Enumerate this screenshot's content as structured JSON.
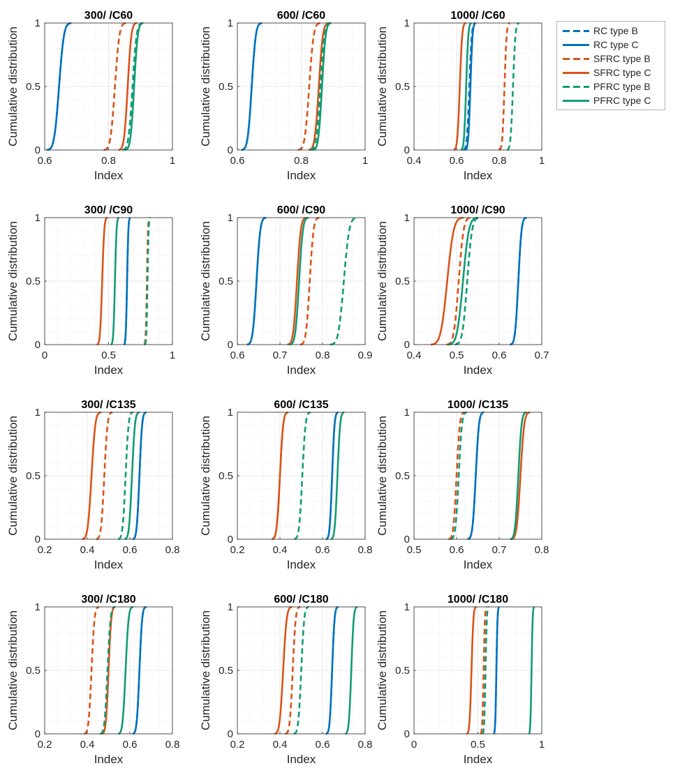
{
  "figure": {
    "colors": {
      "RC": "#0072BD",
      "SFRC": "#D95319",
      "PFRC": "#119B74",
      "axis": "#262626",
      "grid": "#d9d9d9"
    }
  },
  "legend": {
    "entries": [
      {
        "label": "RC type B",
        "color": "#0072BD",
        "style": "dashed"
      },
      {
        "label": "RC type C",
        "color": "#0072BD",
        "style": "solid"
      },
      {
        "label": "SFRC type B",
        "color": "#D95319",
        "style": "dashed"
      },
      {
        "label": "SFRC type C",
        "color": "#D95319",
        "style": "solid"
      },
      {
        "label": "PFRC type B",
        "color": "#119B74",
        "style": "dashed"
      },
      {
        "label": "PFRC type C",
        "color": "#119B74",
        "style": "solid"
      }
    ]
  },
  "chart_data": [
    {
      "type": "line",
      "title": "300/ /C60",
      "xlabel": "Index",
      "ylabel": "Cumulative distribution",
      "xlim": [
        0.6,
        1
      ],
      "xticks": [
        0.6,
        0.8,
        1
      ],
      "xticklabels": [
        "0.6",
        "0.8",
        "1"
      ],
      "ylim": [
        0,
        1
      ],
      "yticks": [
        0,
        0.5,
        1
      ],
      "yticklabels": [
        "0",
        "0.5",
        "1"
      ],
      "grid": "minor-dotted",
      "series": [
        {
          "name": "RC type B",
          "median": 0.645,
          "spread": 0.012
        },
        {
          "name": "RC type C",
          "median": 0.645,
          "spread": 0.012
        },
        {
          "name": "SFRC type B",
          "median": 0.82,
          "spread": 0.011
        },
        {
          "name": "SFRC type C",
          "median": 0.86,
          "spread": 0.009
        },
        {
          "name": "PFRC type B",
          "median": 0.875,
          "spread": 0.01
        },
        {
          "name": "PFRC type C",
          "median": 0.88,
          "spread": 0.009
        }
      ]
    },
    {
      "type": "line",
      "title": "600/ /C60",
      "xlabel": "Index",
      "ylabel": "Cumulative distribution",
      "xlim": [
        0.6,
        1
      ],
      "xticks": [
        0.6,
        0.8,
        1
      ],
      "xticklabels": [
        "0.6",
        "0.8",
        "1"
      ],
      "ylim": [
        0,
        1
      ],
      "yticks": [
        0,
        0.5,
        1
      ],
      "yticklabels": [
        "0",
        "0.5",
        "1"
      ],
      "grid": "minor-dotted",
      "series": [
        {
          "name": "RC type B",
          "median": 0.645,
          "spread": 0.01
        },
        {
          "name": "RC type C",
          "median": 0.645,
          "spread": 0.01
        },
        {
          "name": "SFRC type B",
          "median": 0.825,
          "spread": 0.011
        },
        {
          "name": "SFRC type C",
          "median": 0.855,
          "spread": 0.01
        },
        {
          "name": "PFRC type B",
          "median": 0.86,
          "spread": 0.01
        },
        {
          "name": "PFRC type C",
          "median": 0.865,
          "spread": 0.009
        }
      ]
    },
    {
      "type": "line",
      "title": "1000/ /C60",
      "xlabel": "Index",
      "ylabel": "Cumulative distribution",
      "xlim": [
        0.4,
        1
      ],
      "xticks": [
        0.4,
        0.6,
        0.8,
        1
      ],
      "xticklabels": [
        "0.4",
        "0.6",
        "0.8",
        "1"
      ],
      "ylim": [
        0,
        1
      ],
      "yticks": [
        0,
        0.5,
        1
      ],
      "yticklabels": [
        "0",
        "0.5",
        "1"
      ],
      "grid": "minor-dotted",
      "series": [
        {
          "name": "RC type B",
          "median": 0.66,
          "spread": 0.009
        },
        {
          "name": "RC type C",
          "median": 0.665,
          "spread": 0.008
        },
        {
          "name": "SFRC type B",
          "median": 0.825,
          "spread": 0.008
        },
        {
          "name": "SFRC type C",
          "median": 0.615,
          "spread": 0.009
        },
        {
          "name": "PFRC type B",
          "median": 0.865,
          "spread": 0.009
        },
        {
          "name": "PFRC type C",
          "median": 0.645,
          "spread": 0.008
        }
      ]
    },
    {
      "type": "line",
      "title": "300/ /C90",
      "xlabel": "Index",
      "ylabel": "Cumulative distribution",
      "xlim": [
        0,
        1
      ],
      "xticks": [
        0,
        0.5,
        1
      ],
      "xticklabels": [
        "0",
        "0.5",
        "1"
      ],
      "ylim": [
        0,
        1
      ],
      "yticks": [
        0,
        0.5,
        1
      ],
      "yticklabels": [
        "0",
        "0.5",
        "1"
      ],
      "grid": "minor-dotted",
      "series": [
        {
          "name": "RC type B",
          "median": 0.645,
          "spread": 0.008
        },
        {
          "name": "RC type C",
          "median": 0.645,
          "spread": 0.008
        },
        {
          "name": "SFRC type B",
          "median": 0.8,
          "spread": 0.007
        },
        {
          "name": "SFRC type C",
          "median": 0.45,
          "spread": 0.013
        },
        {
          "name": "PFRC type B",
          "median": 0.805,
          "spread": 0.007
        },
        {
          "name": "PFRC type C",
          "median": 0.55,
          "spread": 0.01
        }
      ]
    },
    {
      "type": "line",
      "title": "600/ /C90",
      "xlabel": "Index",
      "ylabel": "Cumulative distribution",
      "xlim": [
        0.6,
        0.9
      ],
      "xticks": [
        0.6,
        0.7,
        0.8,
        0.9
      ],
      "xticklabels": [
        "0.6",
        "0.7",
        "0.8",
        "0.9"
      ],
      "ylim": [
        0,
        1
      ],
      "yticks": [
        0,
        0.5,
        1
      ],
      "yticklabels": [
        "0",
        "0.5",
        "1"
      ],
      "grid": "minor-dotted",
      "series": [
        {
          "name": "RC type B",
          "median": 0.645,
          "spread": 0.007
        },
        {
          "name": "RC type C",
          "median": 0.645,
          "spread": 0.007
        },
        {
          "name": "SFRC type B",
          "median": 0.77,
          "spread": 0.007
        },
        {
          "name": "SFRC type C",
          "median": 0.74,
          "spread": 0.007
        },
        {
          "name": "PFRC type B",
          "median": 0.85,
          "spread": 0.01
        },
        {
          "name": "PFRC type C",
          "median": 0.745,
          "spread": 0.007
        }
      ]
    },
    {
      "type": "line",
      "title": "1000/ /C90",
      "xlabel": "Index",
      "ylabel": "Cumulative distribution",
      "xlim": [
        0.4,
        0.7
      ],
      "xticks": [
        0.4,
        0.5,
        0.6,
        0.7
      ],
      "xticklabels": [
        "0.4",
        "0.5",
        "0.6",
        "0.7"
      ],
      "ylim": [
        0,
        1
      ],
      "yticks": [
        0,
        0.5,
        1
      ],
      "yticklabels": [
        "0",
        "0.5",
        "1"
      ],
      "grid": "minor-dotted",
      "series": [
        {
          "name": "RC type B",
          "median": 0.645,
          "spread": 0.006
        },
        {
          "name": "RC type C",
          "median": 0.645,
          "spread": 0.006
        },
        {
          "name": "SFRC type B",
          "median": 0.505,
          "spread": 0.009
        },
        {
          "name": "SFRC type C",
          "median": 0.478,
          "spread": 0.012
        },
        {
          "name": "PFRC type B",
          "median": 0.525,
          "spread": 0.009
        },
        {
          "name": "PFRC type C",
          "median": 0.515,
          "spread": 0.011
        }
      ]
    },
    {
      "type": "line",
      "title": "300/ /C135",
      "xlabel": "Index",
      "ylabel": "Cumulative distribution",
      "xlim": [
        0.2,
        0.8
      ],
      "xticks": [
        0.2,
        0.4,
        0.6,
        0.8
      ],
      "xticklabels": [
        "0.2",
        "0.4",
        "0.6",
        "0.8"
      ],
      "ylim": [
        0,
        1
      ],
      "yticks": [
        0,
        0.5,
        1
      ],
      "yticklabels": [
        "0",
        "0.5",
        "1"
      ],
      "grid": "minor-dotted",
      "series": [
        {
          "name": "RC type B",
          "median": 0.645,
          "spread": 0.01
        },
        {
          "name": "RC type C",
          "median": 0.645,
          "spread": 0.01
        },
        {
          "name": "SFRC type B",
          "median": 0.48,
          "spread": 0.012
        },
        {
          "name": "SFRC type C",
          "median": 0.42,
          "spread": 0.014
        },
        {
          "name": "PFRC type B",
          "median": 0.58,
          "spread": 0.011
        },
        {
          "name": "PFRC type C",
          "median": 0.61,
          "spread": 0.011
        }
      ]
    },
    {
      "type": "line",
      "title": "600/ /C135",
      "xlabel": "Index",
      "ylabel": "Cumulative distribution",
      "xlim": [
        0.2,
        0.8
      ],
      "xticks": [
        0.2,
        0.4,
        0.6,
        0.8
      ],
      "xticklabels": [
        "0.2",
        "0.4",
        "0.6",
        "0.8"
      ],
      "ylim": [
        0,
        1
      ],
      "yticks": [
        0,
        0.5,
        1
      ],
      "yticklabels": [
        "0",
        "0.5",
        "1"
      ],
      "grid": "minor-dotted",
      "series": [
        {
          "name": "RC type B",
          "median": 0.645,
          "spread": 0.009
        },
        {
          "name": "RC type C",
          "median": 0.645,
          "spread": 0.009
        },
        {
          "name": "SFRC type B",
          "median": 0.4,
          "spread": 0.012
        },
        {
          "name": "SFRC type C",
          "median": 0.4,
          "spread": 0.012
        },
        {
          "name": "PFRC type B",
          "median": 0.505,
          "spread": 0.012
        },
        {
          "name": "PFRC type C",
          "median": 0.67,
          "spread": 0.01
        }
      ]
    },
    {
      "type": "line",
      "title": "1000/ /C135",
      "xlabel": "Index",
      "ylabel": "Cumulative distribution",
      "xlim": [
        0.5,
        0.8
      ],
      "xticks": [
        0.5,
        0.6,
        0.7,
        0.8
      ],
      "xticklabels": [
        "0.5",
        "0.6",
        "0.7",
        "0.8"
      ],
      "ylim": [
        0,
        1
      ],
      "yticks": [
        0,
        0.5,
        1
      ],
      "yticklabels": [
        "0",
        "0.5",
        "1"
      ],
      "grid": "minor-dotted",
      "series": [
        {
          "name": "RC type B",
          "median": 0.645,
          "spread": 0.006
        },
        {
          "name": "RC type C",
          "median": 0.645,
          "spread": 0.006
        },
        {
          "name": "SFRC type B",
          "median": 0.6,
          "spread": 0.006
        },
        {
          "name": "SFRC type C",
          "median": 0.75,
          "spread": 0.007
        },
        {
          "name": "PFRC type B",
          "median": 0.605,
          "spread": 0.006
        },
        {
          "name": "PFRC type C",
          "median": 0.745,
          "spread": 0.006
        }
      ]
    },
    {
      "type": "line",
      "title": "300/ /C180",
      "xlabel": "Index",
      "ylabel": "Cumulative distribution",
      "xlim": [
        0.2,
        0.8
      ],
      "xticks": [
        0.2,
        0.4,
        0.6,
        0.8
      ],
      "xticklabels": [
        "0.2",
        "0.4",
        "0.6",
        "0.8"
      ],
      "ylim": [
        0,
        1
      ],
      "yticks": [
        0,
        0.5,
        1
      ],
      "yticklabels": [
        "0",
        "0.5",
        "1"
      ],
      "grid": "minor-dotted",
      "series": [
        {
          "name": "RC type B",
          "median": 0.645,
          "spread": 0.01
        },
        {
          "name": "RC type C",
          "median": 0.645,
          "spread": 0.01
        },
        {
          "name": "SFRC type B",
          "median": 0.42,
          "spread": 0.011
        },
        {
          "name": "SFRC type C",
          "median": 0.5,
          "spread": 0.01
        },
        {
          "name": "PFRC type B",
          "median": 0.495,
          "spread": 0.011
        },
        {
          "name": "PFRC type C",
          "median": 0.58,
          "spread": 0.011
        }
      ]
    },
    {
      "type": "line",
      "title": "600/ /C180",
      "xlabel": "Index",
      "ylabel": "Cumulative distribution",
      "xlim": [
        0.2,
        0.8
      ],
      "xticks": [
        0.2,
        0.4,
        0.6,
        0.8
      ],
      "xticklabels": [
        "0.2",
        "0.4",
        "0.6",
        "0.8"
      ],
      "ylim": [
        0,
        1
      ],
      "yticks": [
        0,
        0.5,
        1
      ],
      "yticklabels": [
        "0",
        "0.5",
        "1"
      ],
      "grid": "minor-dotted",
      "series": [
        {
          "name": "RC type B",
          "median": 0.645,
          "spread": 0.009
        },
        {
          "name": "RC type C",
          "median": 0.645,
          "spread": 0.009
        },
        {
          "name": "SFRC type B",
          "median": 0.46,
          "spread": 0.011
        },
        {
          "name": "SFRC type C",
          "median": 0.415,
          "spread": 0.013
        },
        {
          "name": "PFRC type B",
          "median": 0.5,
          "spread": 0.011
        },
        {
          "name": "PFRC type C",
          "median": 0.735,
          "spread": 0.009
        }
      ]
    },
    {
      "type": "line",
      "title": "1000/ /C180",
      "xlabel": "Index",
      "ylabel": "Cumulative distribution",
      "xlim": [
        0,
        1
      ],
      "xticks": [
        0,
        0.5,
        1
      ],
      "xticklabels": [
        "0",
        "0.5",
        "1"
      ],
      "ylim": [
        0,
        1
      ],
      "yticks": [
        0,
        0.5,
        1
      ],
      "yticklabels": [
        "0",
        "0.5",
        "1"
      ],
      "grid": "minor-dotted",
      "series": [
        {
          "name": "RC type B",
          "median": 0.645,
          "spread": 0.007
        },
        {
          "name": "RC type C",
          "median": 0.645,
          "spread": 0.007
        },
        {
          "name": "SFRC type B",
          "median": 0.545,
          "spread": 0.008
        },
        {
          "name": "SFRC type C",
          "median": 0.45,
          "spread": 0.012
        },
        {
          "name": "PFRC type B",
          "median": 0.56,
          "spread": 0.008
        },
        {
          "name": "PFRC type C",
          "median": 0.92,
          "spread": 0.007
        }
      ]
    }
  ]
}
